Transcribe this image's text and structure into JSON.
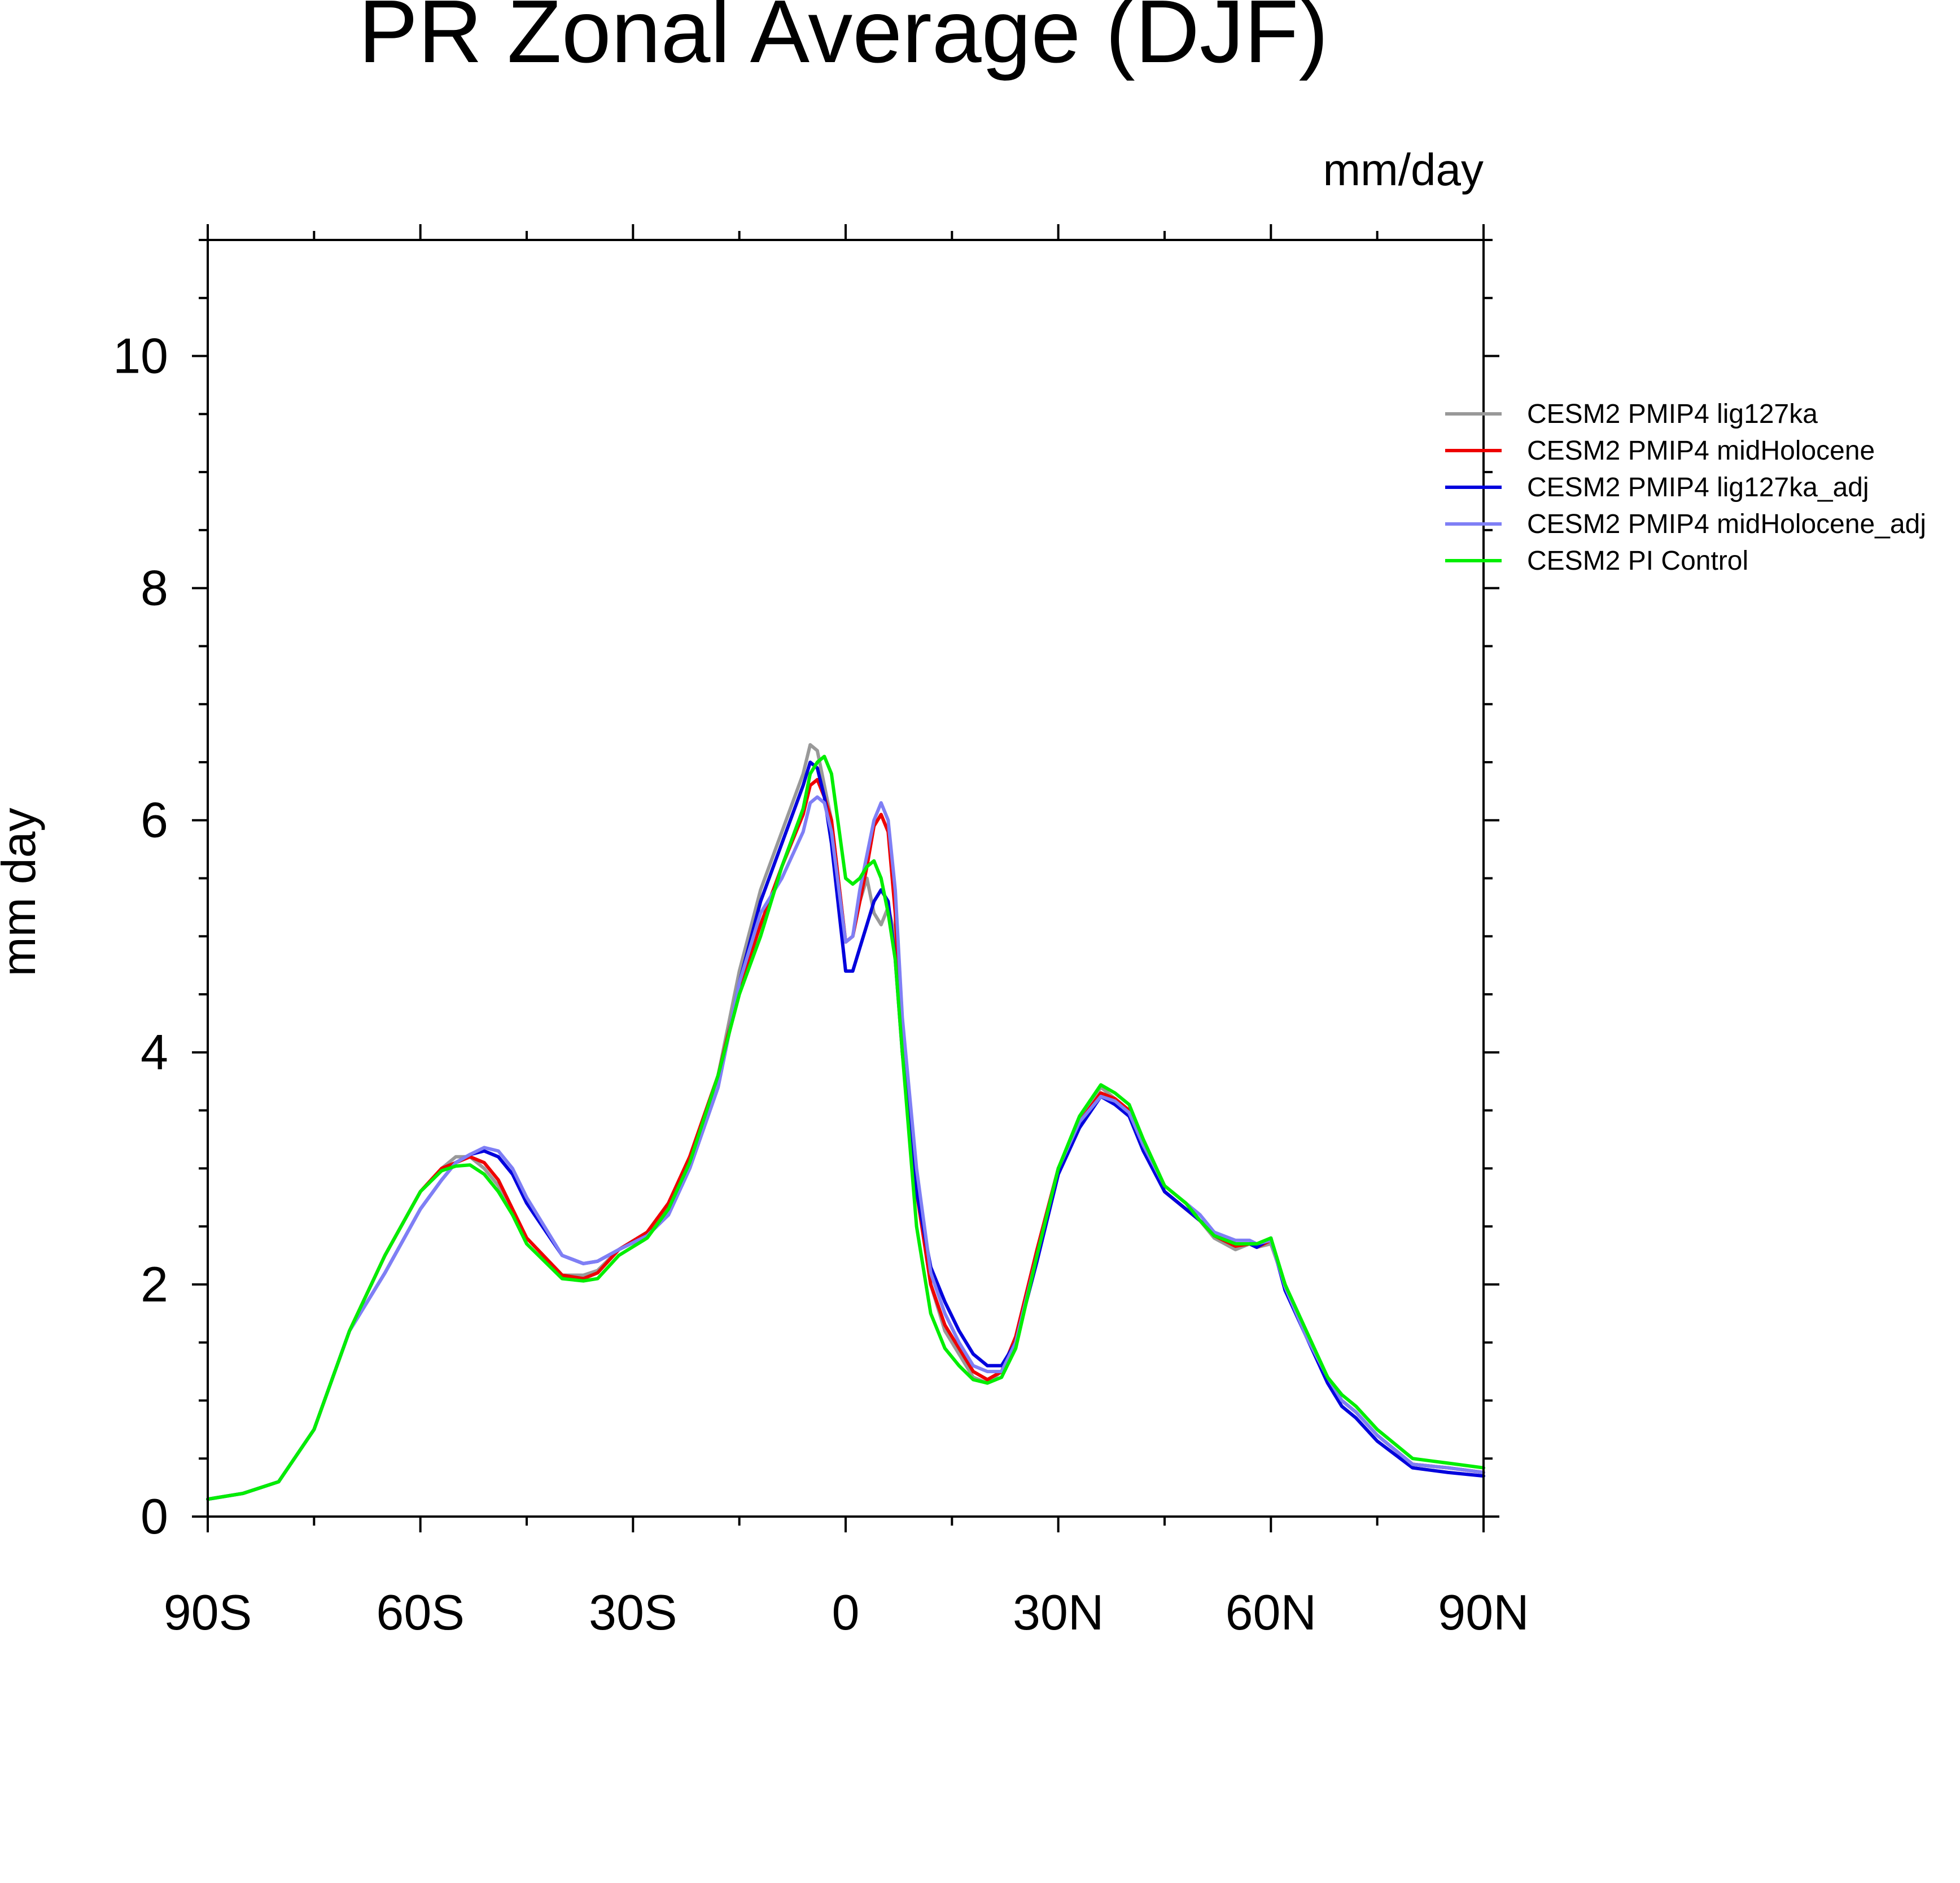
{
  "chart_data": {
    "type": "line",
    "title": "PR Zonal Average (DJF)",
    "units_label": "mm/day",
    "ylabel": "mm day",
    "xlabel": "",
    "xlim": [
      -90,
      90
    ],
    "ylim": [
      0,
      11
    ],
    "xticks": [
      {
        "value": -90,
        "label": "90S"
      },
      {
        "value": -60,
        "label": "60S"
      },
      {
        "value": -30,
        "label": "30S"
      },
      {
        "value": 0,
        "label": "0"
      },
      {
        "value": 30,
        "label": "30N"
      },
      {
        "value": 60,
        "label": "60N"
      },
      {
        "value": 90,
        "label": "90N"
      }
    ],
    "yticks": [
      {
        "value": 0,
        "label": "0"
      },
      {
        "value": 2,
        "label": "2"
      },
      {
        "value": 4,
        "label": "4"
      },
      {
        "value": 6,
        "label": "6"
      },
      {
        "value": 8,
        "label": "8"
      },
      {
        "value": 10,
        "label": "10"
      }
    ],
    "legend_position": "right",
    "series": [
      {
        "name": "CESM2 PMIP4 lig127ka",
        "color": "#999999",
        "x": [
          -90,
          -85,
          -80,
          -75,
          -70,
          -65,
          -60,
          -57,
          -55,
          -53,
          -51,
          -49,
          -47,
          -45,
          -40,
          -37,
          -35,
          -32,
          -28,
          -25,
          -22,
          -18,
          -15,
          -12,
          -9,
          -6,
          -5,
          -4,
          -3,
          -2,
          0,
          1,
          2,
          3,
          4,
          5,
          6,
          7,
          8,
          10,
          12,
          14,
          16,
          18,
          20,
          22,
          24,
          27,
          30,
          33,
          36,
          38,
          40,
          42,
          45,
          48,
          50,
          52,
          55,
          57,
          58,
          60,
          62,
          65,
          68,
          70,
          72,
          75,
          80,
          85,
          90
        ],
        "y": [
          0.15,
          0.2,
          0.3,
          0.75,
          1.6,
          2.25,
          2.8,
          3.0,
          3.1,
          3.1,
          3.0,
          2.85,
          2.6,
          2.4,
          2.08,
          2.08,
          2.12,
          2.3,
          2.45,
          2.7,
          3.1,
          3.8,
          4.7,
          5.4,
          5.9,
          6.4,
          6.65,
          6.6,
          6.3,
          6.0,
          4.95,
          5.0,
          5.3,
          5.5,
          5.2,
          5.1,
          5.25,
          5.0,
          4.0,
          2.8,
          2.0,
          1.6,
          1.4,
          1.2,
          1.15,
          1.25,
          1.55,
          2.3,
          3.0,
          3.4,
          3.7,
          3.6,
          3.5,
          3.2,
          2.8,
          2.65,
          2.55,
          2.4,
          2.3,
          2.35,
          2.32,
          2.35,
          2.0,
          1.55,
          1.2,
          1.0,
          0.9,
          0.7,
          0.45,
          0.42,
          0.38
        ]
      },
      {
        "name": "CESM2 PMIP4 midHolocene",
        "color": "#ee0000",
        "x": [
          -90,
          -85,
          -80,
          -75,
          -70,
          -65,
          -60,
          -57,
          -55,
          -53,
          -51,
          -49,
          -47,
          -45,
          -40,
          -37,
          -35,
          -32,
          -28,
          -25,
          -22,
          -18,
          -15,
          -12,
          -9,
          -6,
          -5,
          -4,
          -3,
          -2,
          0,
          1,
          2,
          3,
          4,
          5,
          6,
          7,
          8,
          10,
          12,
          14,
          16,
          18,
          20,
          22,
          24,
          27,
          30,
          33,
          36,
          38,
          40,
          42,
          45,
          48,
          50,
          52,
          55,
          57,
          58,
          60,
          62,
          65,
          68,
          70,
          72,
          75,
          80,
          85,
          90
        ],
        "y": [
          0.15,
          0.2,
          0.3,
          0.75,
          1.6,
          2.25,
          2.8,
          3.0,
          3.05,
          3.1,
          3.05,
          2.9,
          2.65,
          2.4,
          2.08,
          2.05,
          2.1,
          2.3,
          2.45,
          2.7,
          3.1,
          3.8,
          4.55,
          5.1,
          5.6,
          6.05,
          6.3,
          6.35,
          6.2,
          6.0,
          4.95,
          5.0,
          5.3,
          5.6,
          5.95,
          6.05,
          5.9,
          5.2,
          4.0,
          2.8,
          2.0,
          1.65,
          1.45,
          1.25,
          1.18,
          1.25,
          1.55,
          2.3,
          3.0,
          3.4,
          3.65,
          3.6,
          3.5,
          3.2,
          2.8,
          2.65,
          2.55,
          2.42,
          2.33,
          2.35,
          2.32,
          2.38,
          2.0,
          1.55,
          1.2,
          1.0,
          0.9,
          0.7,
          0.45,
          0.42,
          0.38
        ]
      },
      {
        "name": "CESM2 PMIP4 lig127ka_adj",
        "color": "#0000dd",
        "x": [
          -90,
          -85,
          -80,
          -75,
          -70,
          -65,
          -60,
          -57,
          -55,
          -53,
          -51,
          -49,
          -47,
          -45,
          -40,
          -37,
          -35,
          -32,
          -28,
          -25,
          -22,
          -18,
          -15,
          -12,
          -9,
          -6,
          -5,
          -4,
          -3,
          -2,
          0,
          1,
          2,
          3,
          4,
          5,
          6,
          7,
          8,
          10,
          12,
          14,
          16,
          18,
          20,
          22,
          24,
          27,
          30,
          33,
          36,
          38,
          40,
          42,
          45,
          48,
          50,
          52,
          55,
          57,
          58,
          60,
          62,
          65,
          68,
          70,
          72,
          75,
          80,
          85,
          90
        ],
        "y": [
          0.15,
          0.2,
          0.3,
          0.75,
          1.6,
          2.1,
          2.65,
          2.9,
          3.05,
          3.12,
          3.15,
          3.1,
          2.95,
          2.7,
          2.25,
          2.18,
          2.2,
          2.3,
          2.42,
          2.6,
          3.0,
          3.7,
          4.6,
          5.3,
          5.8,
          6.3,
          6.5,
          6.45,
          6.2,
          5.8,
          4.7,
          4.7,
          4.9,
          5.1,
          5.3,
          5.4,
          5.3,
          4.8,
          4.0,
          2.8,
          2.15,
          1.85,
          1.6,
          1.4,
          1.3,
          1.3,
          1.5,
          2.2,
          2.95,
          3.35,
          3.62,
          3.55,
          3.45,
          3.15,
          2.8,
          2.65,
          2.55,
          2.45,
          2.35,
          2.35,
          2.32,
          2.4,
          1.95,
          1.55,
          1.15,
          0.95,
          0.85,
          0.65,
          0.42,
          0.38,
          0.35
        ]
      },
      {
        "name": "CESM2 PMIP4 midHolocene_adj",
        "color": "#7f7ff5",
        "x": [
          -90,
          -85,
          -80,
          -75,
          -70,
          -65,
          -60,
          -57,
          -55,
          -53,
          -51,
          -49,
          -47,
          -45,
          -40,
          -37,
          -35,
          -32,
          -28,
          -25,
          -22,
          -18,
          -15,
          -12,
          -9,
          -6,
          -5,
          -4,
          -3,
          -2,
          0,
          1,
          2,
          3,
          4,
          5,
          6,
          7,
          8,
          10,
          12,
          14,
          16,
          18,
          20,
          22,
          24,
          27,
          30,
          33,
          36,
          38,
          40,
          42,
          45,
          48,
          50,
          52,
          55,
          57,
          58,
          60,
          62,
          65,
          68,
          70,
          72,
          75,
          80,
          85,
          90
        ],
        "y": [
          0.15,
          0.2,
          0.3,
          0.75,
          1.6,
          2.1,
          2.65,
          2.9,
          3.05,
          3.12,
          3.18,
          3.15,
          3.0,
          2.75,
          2.25,
          2.18,
          2.2,
          2.3,
          2.42,
          2.6,
          3.0,
          3.7,
          4.6,
          5.2,
          5.5,
          5.9,
          6.15,
          6.2,
          6.15,
          5.9,
          4.95,
          5.0,
          5.4,
          5.7,
          6.0,
          6.15,
          6.0,
          5.4,
          4.3,
          3.0,
          2.1,
          1.75,
          1.5,
          1.3,
          1.25,
          1.25,
          1.5,
          2.25,
          3.0,
          3.4,
          3.62,
          3.58,
          3.48,
          3.2,
          2.85,
          2.7,
          2.6,
          2.45,
          2.38,
          2.38,
          2.35,
          2.38,
          1.98,
          1.55,
          1.2,
          1.0,
          0.9,
          0.7,
          0.45,
          0.42,
          0.38
        ]
      },
      {
        "name": "CESM2 PI Control",
        "color": "#00ee00",
        "x": [
          -90,
          -85,
          -80,
          -75,
          -70,
          -65,
          -60,
          -57,
          -55,
          -53,
          -51,
          -49,
          -47,
          -45,
          -40,
          -37,
          -35,
          -32,
          -28,
          -25,
          -22,
          -18,
          -15,
          -12,
          -9,
          -6,
          -5,
          -4,
          -3,
          -2,
          0,
          1,
          2,
          3,
          4,
          5,
          6,
          7,
          8,
          10,
          12,
          14,
          16,
          18,
          20,
          22,
          24,
          27,
          30,
          33,
          36,
          38,
          40,
          42,
          45,
          48,
          50,
          52,
          55,
          57,
          58,
          60,
          62,
          65,
          68,
          70,
          72,
          75,
          80,
          85,
          90
        ],
        "y": [
          0.15,
          0.2,
          0.3,
          0.75,
          1.6,
          2.25,
          2.8,
          2.98,
          3.02,
          3.03,
          2.95,
          2.8,
          2.6,
          2.35,
          2.05,
          2.03,
          2.05,
          2.25,
          2.4,
          2.65,
          3.05,
          3.8,
          4.5,
          5.0,
          5.6,
          6.1,
          6.4,
          6.5,
          6.55,
          6.4,
          5.5,
          5.45,
          5.5,
          5.6,
          5.65,
          5.5,
          5.2,
          4.8,
          4.0,
          2.5,
          1.75,
          1.45,
          1.3,
          1.18,
          1.15,
          1.2,
          1.45,
          2.25,
          3.0,
          3.45,
          3.72,
          3.65,
          3.55,
          3.25,
          2.85,
          2.7,
          2.55,
          2.42,
          2.35,
          2.35,
          2.35,
          2.4,
          2.0,
          1.6,
          1.2,
          1.05,
          0.95,
          0.75,
          0.5,
          0.46,
          0.42
        ]
      }
    ]
  }
}
